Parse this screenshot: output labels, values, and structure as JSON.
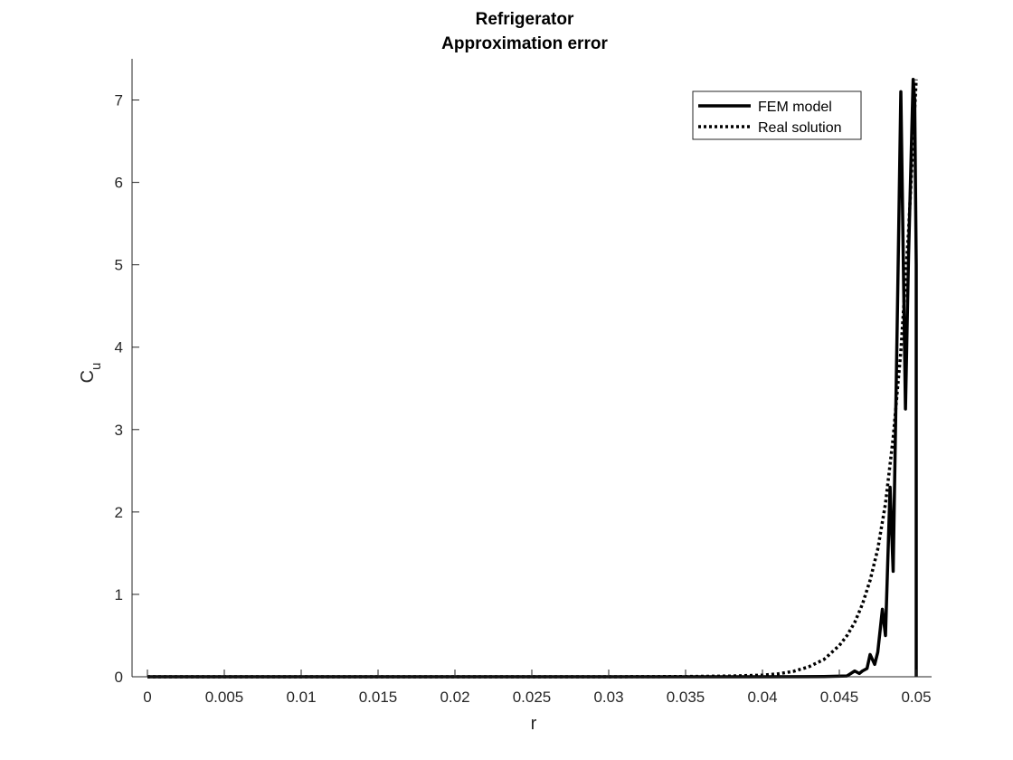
{
  "chart_data": {
    "type": "line",
    "title": "Refrigerator",
    "subtitle": "Approximation error",
    "xlabel": "r",
    "ylabel_main": "C",
    "ylabel_sub": "u",
    "xlim": [
      -0.001,
      0.051
    ],
    "ylim": [
      0,
      7.5
    ],
    "xticks": [
      0,
      0.005,
      0.01,
      0.015,
      0.02,
      0.025,
      0.03,
      0.035,
      0.04,
      0.045,
      0.05
    ],
    "xtick_labels": [
      "0",
      "0.005",
      "0.01",
      "0.015",
      "0.02",
      "0.025",
      "0.03",
      "0.035",
      "0.04",
      "0.045",
      "0.05"
    ],
    "yticks": [
      0,
      1,
      2,
      3,
      4,
      5,
      6,
      7
    ],
    "ytick_labels": [
      "0",
      "1",
      "2",
      "3",
      "4",
      "5",
      "6",
      "7"
    ],
    "grid": false,
    "legend_position": "top-right",
    "series": [
      {
        "name": "FEM model",
        "style": "solid",
        "color": "#000000",
        "x": [
          0,
          0.01,
          0.02,
          0.03,
          0.04,
          0.044,
          0.0455,
          0.046,
          0.0463,
          0.0465,
          0.0468,
          0.047,
          0.0473,
          0.0475,
          0.0478,
          0.048,
          0.0483,
          0.0485,
          0.0488,
          0.049,
          0.0493,
          0.0495,
          0.0498,
          0.0499,
          0.05,
          0.05
        ],
        "y": [
          0,
          0,
          0,
          0,
          0,
          0.003,
          0.01,
          0.07,
          0.04,
          0.07,
          0.1,
          0.27,
          0.15,
          0.3,
          0.82,
          0.5,
          2.3,
          1.28,
          4.7,
          7.1,
          3.25,
          5.1,
          7.25,
          7.0,
          5.0,
          0
        ]
      },
      {
        "name": "Real solution",
        "style": "dotted",
        "color": "#000000",
        "x": [
          0,
          0.01,
          0.02,
          0.03,
          0.035,
          0.038,
          0.04,
          0.041,
          0.042,
          0.043,
          0.044,
          0.045,
          0.0455,
          0.046,
          0.0465,
          0.047,
          0.0475,
          0.048,
          0.0485,
          0.049,
          0.0495,
          0.05
        ],
        "y": [
          0,
          0,
          0,
          0,
          0.003,
          0.009,
          0.02,
          0.035,
          0.065,
          0.12,
          0.21,
          0.38,
          0.5,
          0.66,
          0.88,
          1.17,
          1.55,
          2.1,
          2.9,
          3.95,
          5.4,
          7.25
        ]
      }
    ]
  }
}
